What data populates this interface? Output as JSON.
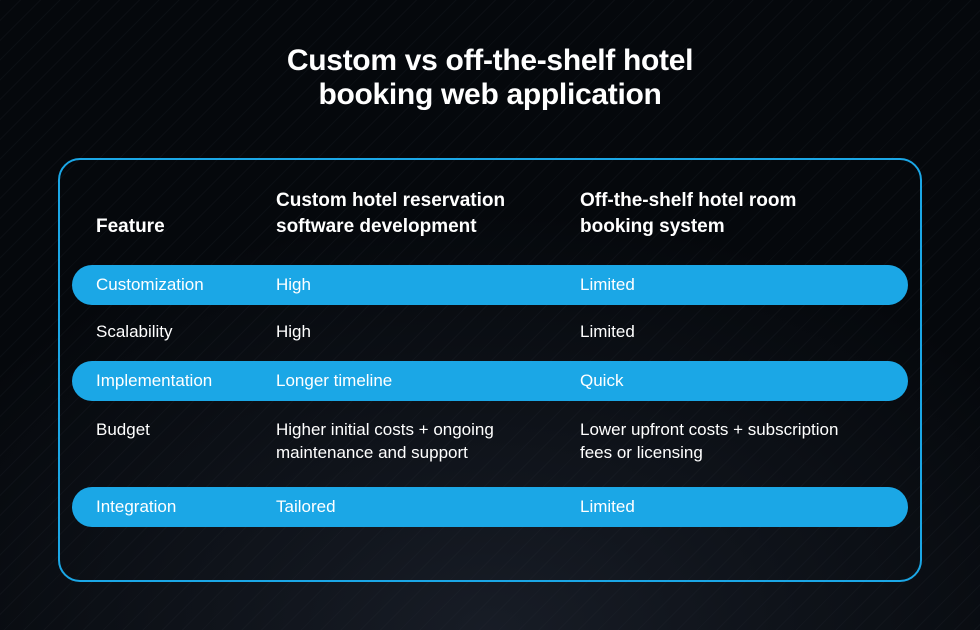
{
  "title_line1": "Custom vs off-the-shelf hotel",
  "title_line2": "booking web application",
  "title_fontsize": 30,
  "colors": {
    "background": "#0a0e14",
    "border": "#1ba7e6",
    "highlight": "#1ba7e6",
    "text": "#ffffff"
  },
  "table": {
    "header_fontsize": 19,
    "body_fontsize": 17,
    "columns": [
      "Feature",
      "Custom hotel reservation software development",
      "Off-the-shelf hotel room booking system"
    ],
    "rows": [
      {
        "highlight": true,
        "cells": [
          "Customization",
          "High",
          "Limited"
        ]
      },
      {
        "highlight": false,
        "cells": [
          "Scalability",
          "High",
          "Limited"
        ]
      },
      {
        "highlight": true,
        "cells": [
          "Implementation",
          "Longer timeline",
          "Quick"
        ]
      },
      {
        "highlight": false,
        "cells": [
          "Budget",
          "Higher initial costs + ongoing maintenance and support",
          "Lower upfront costs + subscription fees or licensing"
        ]
      },
      {
        "highlight": true,
        "cells": [
          "Integration",
          "Tailored",
          "Limited"
        ]
      }
    ]
  }
}
